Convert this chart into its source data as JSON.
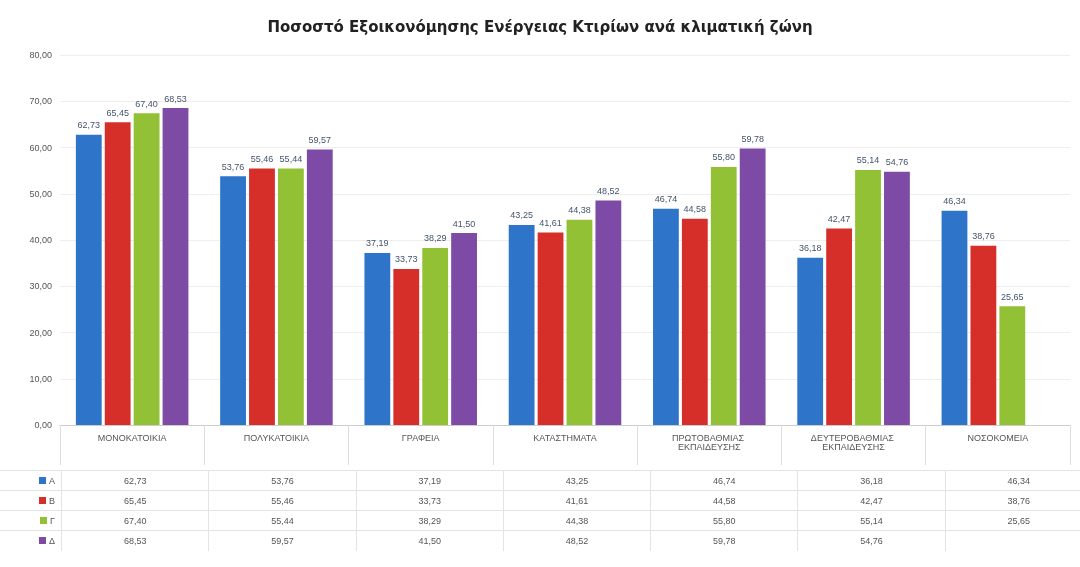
{
  "chart_data": {
    "type": "bar",
    "title": "Ποσοστό Εξοικονόμησης Ενέργειας Κτιρίων ανά κλιματική ζώνη",
    "categories": [
      "ΜΟΝΟΚΑΤΟΙΚΙΑ",
      "ΠΟΛΥΚΑΤΟΙΚΙΑ",
      "ΓΡΑΦΕΙΑ",
      "ΚΑΤΑΣΤΗΜΑΤΑ",
      "ΠΡΩΤΟΒΑΘΜΙΑΣ ΕΚΠΑΙΔΕΥΣΗΣ",
      "ΔΕΥΤΕΡΟΒΑΘΜΙΑΣ ΕΚΠΑΙΔΕΥΣΗΣ",
      "ΝΟΣΟΚΟΜΕΙΑ"
    ],
    "series": [
      {
        "name": "Α",
        "color": "#2e75c9",
        "values": [
          62.73,
          53.76,
          37.19,
          43.25,
          46.74,
          36.18,
          46.34
        ],
        "value_labels": [
          "62,73",
          "53,76",
          "37,19",
          "43,25",
          "46,74",
          "36,18",
          "46,34"
        ]
      },
      {
        "name": "Β",
        "color": "#d62f2a",
        "values": [
          65.45,
          55.46,
          33.73,
          41.61,
          44.58,
          42.47,
          38.76
        ],
        "value_labels": [
          "65,45",
          "55,46",
          "33,73",
          "41,61",
          "44,58",
          "42,47",
          "38,76"
        ]
      },
      {
        "name": "Γ",
        "color": "#92c136",
        "values": [
          67.4,
          55.44,
          38.29,
          44.38,
          55.8,
          55.14,
          25.65
        ],
        "value_labels": [
          "67,40",
          "55,44",
          "38,29",
          "44,38",
          "55,80",
          "55,14",
          "25,65"
        ]
      },
      {
        "name": "Δ",
        "color": "#7d4aa6",
        "values": [
          68.53,
          59.57,
          41.5,
          48.52,
          59.78,
          54.76,
          null
        ],
        "value_labels": [
          "68,53",
          "59,57",
          "41,50",
          "48,52",
          "59,78",
          "54,76",
          null
        ]
      }
    ],
    "ylim": [
      0,
      80
    ],
    "yticks": [
      {
        "value": 0,
        "label": "0,00"
      },
      {
        "value": 10,
        "label": "10,00"
      },
      {
        "value": 20,
        "label": "20,00"
      },
      {
        "value": 30,
        "label": "30,00"
      },
      {
        "value": 40,
        "label": "40,00"
      },
      {
        "value": 50,
        "label": "50,00"
      },
      {
        "value": 60,
        "label": "60,00"
      },
      {
        "value": 70,
        "label": "70,00"
      },
      {
        "value": 80,
        "label": "80,00"
      }
    ],
    "grid": "y",
    "legend": "bottom left"
  }
}
